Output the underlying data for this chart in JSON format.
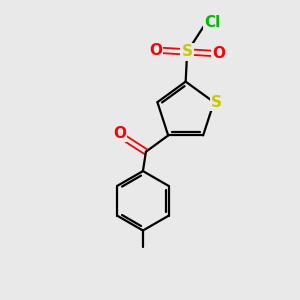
{
  "background_color": "#e9e9e9",
  "atom_colors": {
    "S_sulfonyl": "#c8c800",
    "S_thiophene": "#c8c800",
    "O": "#ff0000",
    "Cl": "#00bb00",
    "C": "#000000"
  },
  "bond_color": "#000000",
  "bond_width": 1.6,
  "figsize": [
    3.0,
    3.0
  ],
  "dpi": 100
}
